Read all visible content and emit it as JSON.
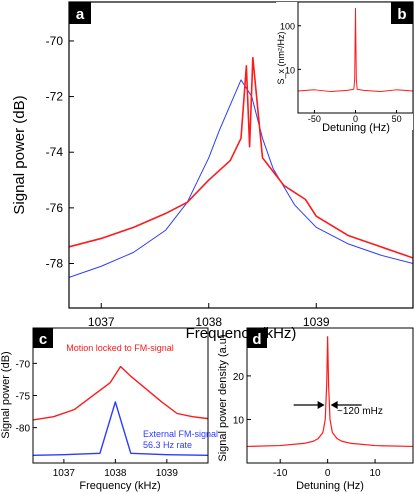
{
  "colors": {
    "red": "#ff1a1a",
    "blue": "#2b3bff",
    "axis": "#000000",
    "panel_letter_bg": "#000000"
  },
  "chart_data": [
    {
      "panel": "a",
      "type": "line",
      "xlabel": "Frequency (kHz)",
      "ylabel": "Signal power  (dB)",
      "xlim": [
        1036.7,
        1039.9
      ],
      "ylim": [
        -79.6,
        -68.6
      ],
      "xticks": [
        1037,
        1038,
        1039
      ],
      "yticks": [
        -70,
        -72,
        -74,
        -76,
        -78
      ],
      "xtick_labels": [
        "1037",
        "1038",
        "1039"
      ],
      "ytick_labels": [
        "-70",
        "-72",
        "-74",
        "-76",
        "-78"
      ],
      "series": [
        {
          "color": "#2b3bff",
          "x": [
            1036.7,
            1037.0,
            1037.3,
            1037.6,
            1037.8,
            1038.0,
            1038.1,
            1038.2,
            1038.3,
            1038.4,
            1038.5,
            1038.6,
            1038.8,
            1039.0,
            1039.3,
            1039.6,
            1039.9
          ],
          "y": [
            -78.5,
            -78.1,
            -77.6,
            -76.8,
            -75.8,
            -74.2,
            -73.2,
            -72.3,
            -71.4,
            -72.0,
            -73.5,
            -74.6,
            -75.9,
            -76.7,
            -77.3,
            -77.7,
            -78.0
          ]
        },
        {
          "color": "#ff1a1a",
          "x": [
            1036.7,
            1037.0,
            1037.3,
            1037.6,
            1037.8,
            1038.0,
            1038.2,
            1038.3,
            1038.35,
            1038.38,
            1038.41,
            1038.5,
            1038.7,
            1038.9,
            1039.0,
            1039.3,
            1039.6,
            1039.9
          ],
          "y": [
            -77.4,
            -77.1,
            -76.7,
            -76.2,
            -75.8,
            -75.0,
            -74.3,
            -73.5,
            -70.9,
            -73.8,
            -70.6,
            -74.2,
            -75.2,
            -75.7,
            -76.3,
            -77.0,
            -77.4,
            -77.8
          ]
        }
      ],
      "inset": {
        "panel": "b",
        "type": "line",
        "xlabel": "Detuning (Hz)",
        "ylabel": "S_x (nm²/Hz)",
        "xlim": [
          -70,
          70
        ],
        "ylim": [
          1,
          350
        ],
        "log_y": true,
        "xticks": [
          -50,
          0,
          50
        ],
        "xtick_labels": [
          "-50",
          "0",
          "50"
        ],
        "yticks": [
          10,
          100
        ],
        "ytick_labels": [
          "10",
          "100"
        ],
        "series": [
          {
            "color": "#ff1a1a",
            "x": [
              -70,
              -50,
              -30,
              -10,
              -2,
              -1,
              0,
              1,
              2,
              10,
              30,
              50,
              70
            ],
            "y": [
              3.2,
              3.4,
              3.1,
              3.3,
              3.5,
              6.0,
              250,
              6.0,
              3.5,
              3.3,
              3.1,
              3.4,
              3.2
            ]
          }
        ]
      }
    },
    {
      "panel": "c",
      "type": "line",
      "xlabel": "Frequency (kHz)",
      "ylabel": "Signal power (dB)",
      "xlim": [
        1036.4,
        1039.8
      ],
      "ylim": [
        -85.5,
        -64.5
      ],
      "xticks": [
        1037,
        1038,
        1039
      ],
      "xtick_labels": [
        "1037",
        "1038",
        "1039"
      ],
      "yticks": [
        -70,
        -75,
        -80
      ],
      "ytick_labels": [
        "-70",
        "-75",
        "-80"
      ],
      "annotations": [
        "Motion locked to FM-signal",
        "External FM-signal",
        "56.3 Hz rate"
      ],
      "series": [
        {
          "color": "#ff1a1a",
          "x": [
            1036.4,
            1036.8,
            1037.2,
            1037.6,
            1037.9,
            1038.1,
            1038.3,
            1038.6,
            1038.9,
            1039.2,
            1039.5,
            1039.8
          ],
          "y": [
            -78.8,
            -78.3,
            -77.2,
            -74.8,
            -73.0,
            -70.5,
            -72.0,
            -74.0,
            -76.0,
            -77.8,
            -78.3,
            -78.6
          ]
        },
        {
          "color": "#2b3bff",
          "x": [
            1036.4,
            1037.0,
            1037.7,
            1037.85,
            1038.0,
            1038.15,
            1038.3,
            1039.0,
            1039.8
          ],
          "y": [
            -84.3,
            -84.2,
            -84.0,
            -80.0,
            -76.0,
            -80.0,
            -84.0,
            -84.2,
            -84.3
          ]
        }
      ]
    },
    {
      "panel": "d",
      "type": "line",
      "xlabel": "Detuning  (Hz)",
      "ylabel": "Signal power density (a.u)",
      "xlim": [
        -17,
        18
      ],
      "ylim": [
        0,
        31
      ],
      "xticks": [
        -10,
        0,
        10
      ],
      "xtick_labels": [
        "-10",
        "0",
        "10"
      ],
      "yticks": [
        10,
        20
      ],
      "ytick_labels": [
        "10",
        "20"
      ],
      "annotations": [
        "~120 mHz"
      ],
      "series": [
        {
          "color": "#ff1a1a",
          "x": [
            -17,
            -10,
            -5,
            -3,
            -2,
            -1,
            -0.5,
            -0.2,
            0,
            0.2,
            0.5,
            1,
            2,
            3,
            5,
            10,
            18
          ],
          "y": [
            3.8,
            4.0,
            4.5,
            5.0,
            5.6,
            7.0,
            10.0,
            18.0,
            29.0,
            18.0,
            10.0,
            7.0,
            5.6,
            5.0,
            4.5,
            4.0,
            3.8
          ]
        }
      ]
    }
  ],
  "labels": {
    "a": "a",
    "b": "b",
    "c": "c",
    "d": "d"
  }
}
